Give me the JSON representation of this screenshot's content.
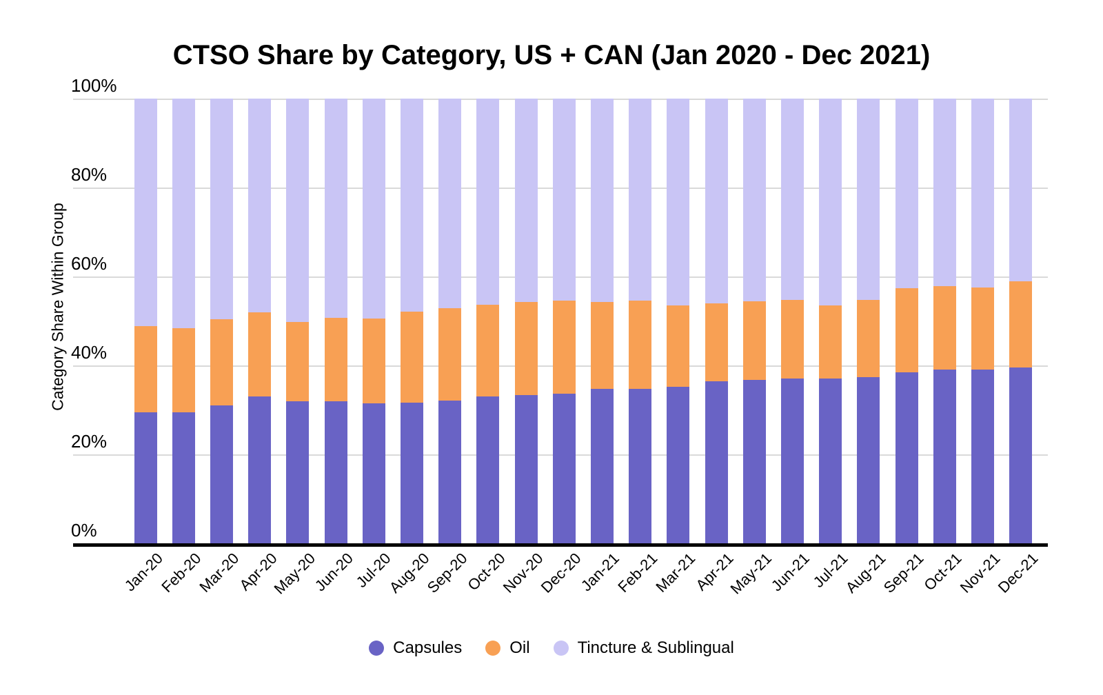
{
  "title": "CTSO Share by Category, US + CAN (Jan 2020 - Dec 2021)",
  "y_axis_title": "Category Share Within Group",
  "y_ticks": [
    "100%",
    "80%",
    "60%",
    "40%",
    "20%",
    "0%"
  ],
  "legend": {
    "items": [
      {
        "label": "Capsules",
        "color": "#6963C5"
      },
      {
        "label": "Oil",
        "color": "#F8A054"
      },
      {
        "label": "Tincture & Sublingual",
        "color": "#C9C5F5"
      }
    ]
  },
  "colors": {
    "capsules": "#6963C5",
    "oil": "#F8A054",
    "tincture": "#C9C5F5",
    "gridline": "#d9d9d9",
    "axis": "#000000"
  },
  "chart_data": {
    "type": "bar",
    "stacked": true,
    "percent": true,
    "title": "CTSO Share by Category, US + CAN (Jan 2020 - Dec 2021)",
    "xlabel": "",
    "ylabel": "Category Share Within Group",
    "ylim": [
      0,
      100
    ],
    "grid": true,
    "legend_position": "bottom",
    "categories": [
      "Jan-20",
      "Feb-20",
      "Mar-20",
      "Apr-20",
      "May-20",
      "Jun-20",
      "Jul-20",
      "Aug-20",
      "Sep-20",
      "Oct-20",
      "Nov-20",
      "Dec-20",
      "Jan-21",
      "Feb-21",
      "Mar-21",
      "Apr-21",
      "May-21",
      "Jun-21",
      "Jul-21",
      "Aug-21",
      "Sep-21",
      "Oct-21",
      "Nov-21",
      "Dec-21"
    ],
    "series": [
      {
        "name": "Capsules",
        "color": "#6963C5",
        "values": [
          29.5,
          29.5,
          31.0,
          33.0,
          32.0,
          32.0,
          31.5,
          31.7,
          32.1,
          33.0,
          33.3,
          33.7,
          34.7,
          34.7,
          35.2,
          36.4,
          36.8,
          37.0,
          37.0,
          37.4,
          38.4,
          39.1,
          39.1,
          39.5
        ]
      },
      {
        "name": "Oil",
        "color": "#F8A054",
        "values": [
          19.3,
          18.9,
          19.4,
          19.0,
          17.8,
          18.7,
          19.1,
          20.4,
          20.8,
          20.7,
          21.0,
          20.9,
          19.6,
          19.9,
          18.3,
          17.6,
          17.6,
          17.8,
          16.5,
          17.3,
          18.9,
          18.7,
          18.5,
          19.4
        ]
      },
      {
        "name": "Tincture & Sublingual",
        "color": "#C9C5F5",
        "values": [
          51.2,
          51.6,
          49.6,
          48.0,
          50.2,
          49.3,
          49.4,
          47.9,
          47.1,
          46.3,
          45.7,
          45.4,
          45.7,
          45.4,
          46.5,
          46.0,
          45.6,
          45.2,
          46.5,
          45.3,
          42.7,
          42.2,
          42.4,
          41.1
        ]
      }
    ]
  }
}
